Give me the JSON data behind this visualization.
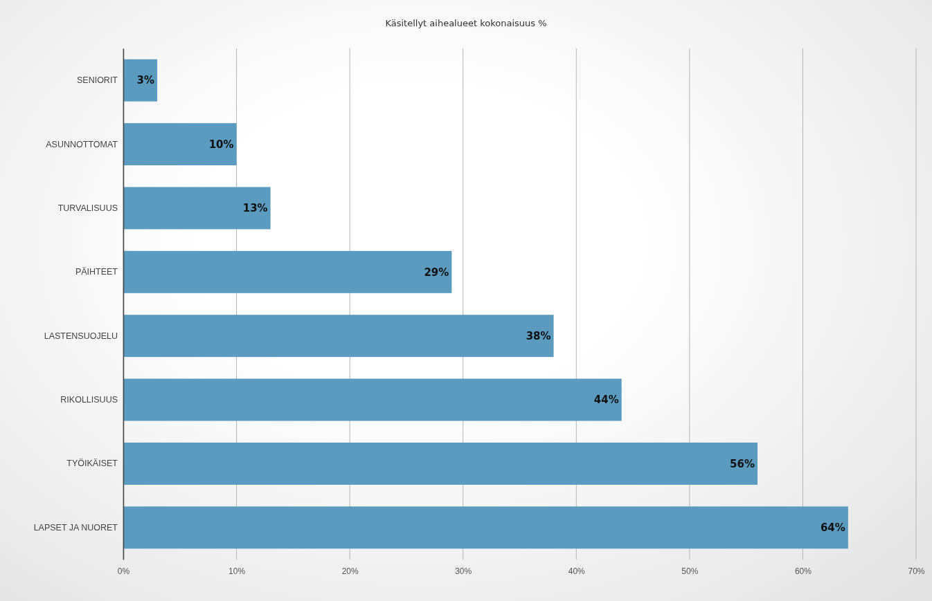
{
  "chart_data": {
    "type": "bar",
    "orientation": "horizontal",
    "title": "Käsitellyt aihealueet kokonaisuus %",
    "categories": [
      "SENIORIT",
      "ASUNNOTTOMAT",
      "TURVALISUUS",
      "PÄIHTEET",
      "LASTENSUOJELU",
      "RIKOLLISUUS",
      "TYÖIKÄISET",
      "LAPSET JA NUORET"
    ],
    "values": [
      3,
      10,
      13,
      29,
      38,
      44,
      56,
      64
    ],
    "value_labels": [
      "3%",
      "10%",
      "13%",
      "29%",
      "38%",
      "44%",
      "56%",
      "64%"
    ],
    "color": "#5a9bbf",
    "xlim": [
      0,
      70
    ],
    "xticks": [
      {
        "value": 0,
        "label": "0%"
      },
      {
        "value": 10,
        "label": "10%"
      },
      {
        "value": 20,
        "label": "20%"
      },
      {
        "value": 30,
        "label": "30%"
      },
      {
        "value": 40,
        "label": "40%"
      },
      {
        "value": 50,
        "label": "50%"
      },
      {
        "value": 60,
        "label": "60%"
      },
      {
        "value": 70,
        "label": "70%"
      }
    ],
    "grid": "x"
  }
}
